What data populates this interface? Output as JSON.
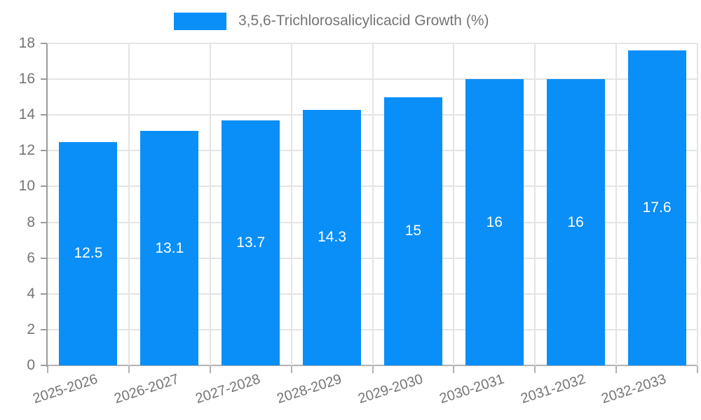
{
  "legend": {
    "label": "3,5,6-Trichlorosalicylicacid Growth (%)"
  },
  "colors": {
    "bar": "#0a8ef8",
    "axis_text": "#757575",
    "gridline": "#e4e4e4",
    "axis_line": "#9b9b9b",
    "bar_label_text": "#ffffff",
    "background": "#ffffff"
  },
  "chart_data": {
    "type": "bar",
    "title": "",
    "legend": "3,5,6-Trichlorosalicylicacid Growth (%)",
    "legend_position": "top",
    "categories": [
      "2025-2026",
      "2026-2027",
      "2027-2028",
      "2028-2029",
      "2029-2030",
      "2030-2031",
      "2031-2032",
      "2032-2033"
    ],
    "values": [
      12.5,
      13.1,
      13.7,
      14.3,
      15,
      16,
      16,
      17.6
    ],
    "bar_labels": [
      "12.5",
      "13.1",
      "13.7",
      "14.3",
      "15",
      "16",
      "16",
      "17.6"
    ],
    "xlabel": "",
    "ylabel": "",
    "ylim": [
      0,
      18
    ],
    "ytick_step": 2,
    "ytick_labels": [
      "0",
      "2",
      "4",
      "6",
      "8",
      "10",
      "12",
      "14",
      "16",
      "18"
    ],
    "grid": true
  }
}
